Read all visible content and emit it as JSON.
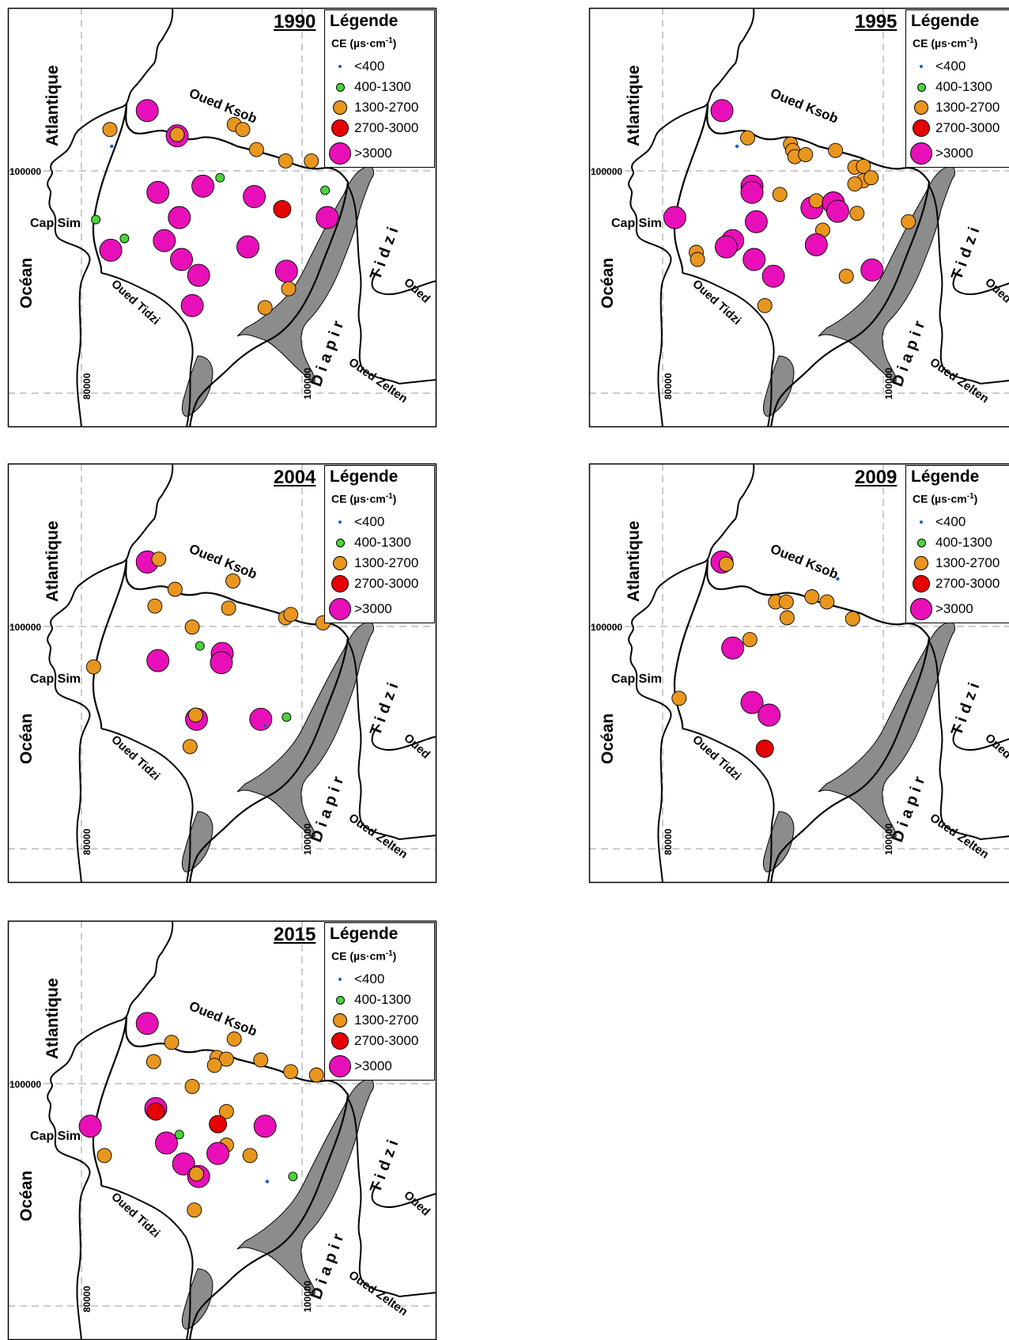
{
  "legend": {
    "title": "Légende",
    "subtitle_pre": "CE (µs·cm",
    "subtitle_sup": "-1",
    "subtitle_post": ")",
    "classes": [
      {
        "label": "<400",
        "color": "#1f5fbf"
      },
      {
        "label": "400-1300",
        "color": "#4ad43a"
      },
      {
        "label": "1300-2700",
        "color": "#e8961e"
      },
      {
        "label": "2700-3000",
        "color": "#e60000"
      },
      {
        "label": ">3000",
        "color": "#e80fb8"
      }
    ]
  },
  "labels": {
    "atlantique": "Atlantique",
    "ocean": "Océan",
    "cap_sim": "Cap Sim",
    "oued_ksob": "Oued Ksob",
    "oued_tidzi": "Oued Tidzi",
    "tidzi": "Tidzi",
    "diapir": "Diapir",
    "oued": "Oued",
    "oued_zelten": "Oued Zelten",
    "coord_y": "100000",
    "coord_x1": "80000",
    "coord_x2": "100000"
  },
  "maps": [
    {
      "year": "1990",
      "points": [
        {
          "x": 0.325,
          "y": 0.245,
          "c": 4
        },
        {
          "x": 0.395,
          "y": 0.305,
          "c": 4
        },
        {
          "x": 0.242,
          "y": 0.33,
          "c": 0
        },
        {
          "x": 0.238,
          "y": 0.29,
          "c": 2
        },
        {
          "x": 0.528,
          "y": 0.278,
          "c": 2
        },
        {
          "x": 0.548,
          "y": 0.29,
          "c": 2
        },
        {
          "x": 0.58,
          "y": 0.338,
          "c": 2
        },
        {
          "x": 0.648,
          "y": 0.365,
          "c": 2
        },
        {
          "x": 0.708,
          "y": 0.365,
          "c": 2
        },
        {
          "x": 0.395,
          "y": 0.302,
          "c": 2
        },
        {
          "x": 0.495,
          "y": 0.405,
          "c": 1
        },
        {
          "x": 0.74,
          "y": 0.435,
          "c": 1
        },
        {
          "x": 0.35,
          "y": 0.44,
          "c": 4
        },
        {
          "x": 0.455,
          "y": 0.425,
          "c": 4
        },
        {
          "x": 0.575,
          "y": 0.45,
          "c": 4
        },
        {
          "x": 0.64,
          "y": 0.48,
          "c": 3
        },
        {
          "x": 0.745,
          "y": 0.5,
          "c": 4
        },
        {
          "x": 0.4,
          "y": 0.5,
          "c": 4
        },
        {
          "x": 0.365,
          "y": 0.555,
          "c": 4
        },
        {
          "x": 0.56,
          "y": 0.57,
          "c": 4
        },
        {
          "x": 0.24,
          "y": 0.578,
          "c": 4
        },
        {
          "x": 0.405,
          "y": 0.6,
          "c": 4
        },
        {
          "x": 0.445,
          "y": 0.638,
          "c": 4
        },
        {
          "x": 0.65,
          "y": 0.628,
          "c": 4
        },
        {
          "x": 0.655,
          "y": 0.67,
          "c": 2
        },
        {
          "x": 0.6,
          "y": 0.715,
          "c": 2
        },
        {
          "x": 0.43,
          "y": 0.71,
          "c": 4
        },
        {
          "x": 0.205,
          "y": 0.505,
          "c": 1
        },
        {
          "x": 0.272,
          "y": 0.55,
          "c": 1
        }
      ]
    },
    {
      "year": "1995",
      "points": [
        {
          "x": 0.31,
          "y": 0.245,
          "c": 4
        },
        {
          "x": 0.37,
          "y": 0.31,
          "c": 2
        },
        {
          "x": 0.345,
          "y": 0.33,
          "c": 0
        },
        {
          "x": 0.47,
          "y": 0.325,
          "c": 2
        },
        {
          "x": 0.475,
          "y": 0.34,
          "c": 2
        },
        {
          "x": 0.48,
          "y": 0.355,
          "c": 2
        },
        {
          "x": 0.505,
          "y": 0.35,
          "c": 2
        },
        {
          "x": 0.575,
          "y": 0.34,
          "c": 2
        },
        {
          "x": 0.62,
          "y": 0.38,
          "c": 2
        },
        {
          "x": 0.64,
          "y": 0.378,
          "c": 2
        },
        {
          "x": 0.64,
          "y": 0.412,
          "c": 2
        },
        {
          "x": 0.658,
          "y": 0.405,
          "c": 2
        },
        {
          "x": 0.62,
          "y": 0.42,
          "c": 2
        },
        {
          "x": 0.38,
          "y": 0.425,
          "c": 4
        },
        {
          "x": 0.38,
          "y": 0.44,
          "c": 4
        },
        {
          "x": 0.445,
          "y": 0.445,
          "c": 2
        },
        {
          "x": 0.52,
          "y": 0.477,
          "c": 4
        },
        {
          "x": 0.53,
          "y": 0.46,
          "c": 2
        },
        {
          "x": 0.57,
          "y": 0.465,
          "c": 4
        },
        {
          "x": 0.58,
          "y": 0.485,
          "c": 4
        },
        {
          "x": 0.625,
          "y": 0.49,
          "c": 2
        },
        {
          "x": 0.745,
          "y": 0.51,
          "c": 2
        },
        {
          "x": 0.39,
          "y": 0.51,
          "c": 4
        },
        {
          "x": 0.545,
          "y": 0.53,
          "c": 2
        },
        {
          "x": 0.2,
          "y": 0.5,
          "c": 4
        },
        {
          "x": 0.335,
          "y": 0.555,
          "c": 4
        },
        {
          "x": 0.32,
          "y": 0.57,
          "c": 4
        },
        {
          "x": 0.53,
          "y": 0.565,
          "c": 4
        },
        {
          "x": 0.25,
          "y": 0.583,
          "c": 2
        },
        {
          "x": 0.253,
          "y": 0.6,
          "c": 2
        },
        {
          "x": 0.385,
          "y": 0.6,
          "c": 4
        },
        {
          "x": 0.43,
          "y": 0.64,
          "c": 4
        },
        {
          "x": 0.6,
          "y": 0.64,
          "c": 2
        },
        {
          "x": 0.66,
          "y": 0.625,
          "c": 4
        },
        {
          "x": 0.41,
          "y": 0.71,
          "c": 2
        }
      ]
    },
    {
      "year": "2004",
      "points": [
        {
          "x": 0.325,
          "y": 0.235,
          "c": 4
        },
        {
          "x": 0.352,
          "y": 0.228,
          "c": 2
        },
        {
          "x": 0.39,
          "y": 0.3,
          "c": 2
        },
        {
          "x": 0.525,
          "y": 0.28,
          "c": 2
        },
        {
          "x": 0.343,
          "y": 0.34,
          "c": 2
        },
        {
          "x": 0.515,
          "y": 0.345,
          "c": 2
        },
        {
          "x": 0.648,
          "y": 0.368,
          "c": 2
        },
        {
          "x": 0.66,
          "y": 0.36,
          "c": 2
        },
        {
          "x": 0.735,
          "y": 0.38,
          "c": 2
        },
        {
          "x": 0.43,
          "y": 0.39,
          "c": 2
        },
        {
          "x": 0.448,
          "y": 0.435,
          "c": 1
        },
        {
          "x": 0.5,
          "y": 0.453,
          "c": 4
        },
        {
          "x": 0.498,
          "y": 0.475,
          "c": 4
        },
        {
          "x": 0.35,
          "y": 0.47,
          "c": 4
        },
        {
          "x": 0.2,
          "y": 0.485,
          "c": 2
        },
        {
          "x": 0.44,
          "y": 0.61,
          "c": 4
        },
        {
          "x": 0.438,
          "y": 0.6,
          "c": 2
        },
        {
          "x": 0.59,
          "y": 0.61,
          "c": 4
        },
        {
          "x": 0.6,
          "y": 0.625,
          "c": 0
        },
        {
          "x": 0.65,
          "y": 0.605,
          "c": 1
        },
        {
          "x": 0.425,
          "y": 0.675,
          "c": 2
        }
      ]
    },
    {
      "year": "2009",
      "points": [
        {
          "x": 0.31,
          "y": 0.235,
          "c": 4
        },
        {
          "x": 0.32,
          "y": 0.24,
          "c": 2
        },
        {
          "x": 0.58,
          "y": 0.275,
          "c": 0
        },
        {
          "x": 0.435,
          "y": 0.33,
          "c": 2
        },
        {
          "x": 0.46,
          "y": 0.33,
          "c": 2
        },
        {
          "x": 0.52,
          "y": 0.318,
          "c": 2
        },
        {
          "x": 0.555,
          "y": 0.33,
          "c": 2
        },
        {
          "x": 0.462,
          "y": 0.368,
          "c": 2
        },
        {
          "x": 0.615,
          "y": 0.37,
          "c": 2
        },
        {
          "x": 0.375,
          "y": 0.42,
          "c": 2
        },
        {
          "x": 0.335,
          "y": 0.44,
          "c": 4
        },
        {
          "x": 0.21,
          "y": 0.56,
          "c": 2
        },
        {
          "x": 0.38,
          "y": 0.57,
          "c": 4
        },
        {
          "x": 0.42,
          "y": 0.6,
          "c": 4
        },
        {
          "x": 0.41,
          "y": 0.68,
          "c": 3
        }
      ]
    },
    {
      "year": "2015",
      "points": [
        {
          "x": 0.325,
          "y": 0.245,
          "c": 4
        },
        {
          "x": 0.382,
          "y": 0.29,
          "c": 2
        },
        {
          "x": 0.528,
          "y": 0.282,
          "c": 2
        },
        {
          "x": 0.34,
          "y": 0.336,
          "c": 2
        },
        {
          "x": 0.488,
          "y": 0.326,
          "c": 2
        },
        {
          "x": 0.51,
          "y": 0.33,
          "c": 2
        },
        {
          "x": 0.482,
          "y": 0.345,
          "c": 2
        },
        {
          "x": 0.59,
          "y": 0.332,
          "c": 2
        },
        {
          "x": 0.66,
          "y": 0.36,
          "c": 2
        },
        {
          "x": 0.72,
          "y": 0.368,
          "c": 2
        },
        {
          "x": 0.43,
          "y": 0.395,
          "c": 2
        },
        {
          "x": 0.345,
          "y": 0.448,
          "c": 4
        },
        {
          "x": 0.345,
          "y": 0.455,
          "c": 3
        },
        {
          "x": 0.51,
          "y": 0.455,
          "c": 2
        },
        {
          "x": 0.49,
          "y": 0.485,
          "c": 3
        },
        {
          "x": 0.6,
          "y": 0.49,
          "c": 4
        },
        {
          "x": 0.192,
          "y": 0.49,
          "c": 4
        },
        {
          "x": 0.4,
          "y": 0.51,
          "c": 1
        },
        {
          "x": 0.37,
          "y": 0.53,
          "c": 4
        },
        {
          "x": 0.51,
          "y": 0.535,
          "c": 2
        },
        {
          "x": 0.49,
          "y": 0.555,
          "c": 4
        },
        {
          "x": 0.565,
          "y": 0.56,
          "c": 2
        },
        {
          "x": 0.225,
          "y": 0.56,
          "c": 2
        },
        {
          "x": 0.41,
          "y": 0.58,
          "c": 4
        },
        {
          "x": 0.445,
          "y": 0.61,
          "c": 4
        },
        {
          "x": 0.44,
          "y": 0.604,
          "c": 2
        },
        {
          "x": 0.605,
          "y": 0.622,
          "c": 0
        },
        {
          "x": 0.665,
          "y": 0.61,
          "c": 1
        },
        {
          "x": 0.435,
          "y": 0.69,
          "c": 2
        }
      ]
    }
  ]
}
